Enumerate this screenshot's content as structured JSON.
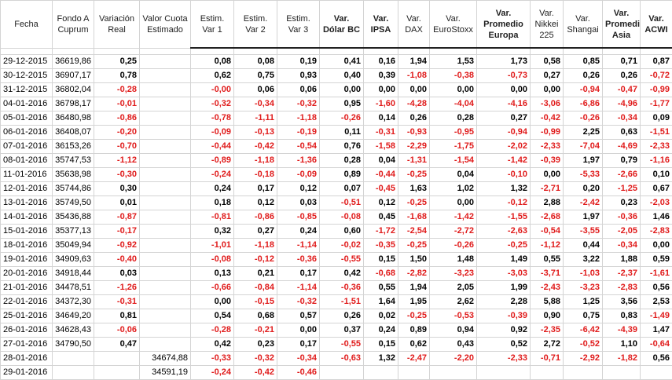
{
  "colors": {
    "negative": "#e01b1b",
    "positive": "#000000",
    "grid": "#d4d4d4"
  },
  "headers": [
    {
      "key": "fecha",
      "label": "Fecha"
    },
    {
      "key": "fondo",
      "label": "Fondo A Cuprum"
    },
    {
      "key": "variacion",
      "label": "Variación Real"
    },
    {
      "key": "valor_cuota",
      "label": "Valor Cuota Estimado"
    },
    {
      "key": "est1",
      "label": "Estim. Var 1"
    },
    {
      "key": "est2",
      "label": "Estim. Var 2"
    },
    {
      "key": "est3",
      "label": "Estim. Var 3"
    },
    {
      "key": "dolar",
      "label": "Var. Dólar BC"
    },
    {
      "key": "ipsa",
      "label": "Var. IPSA"
    },
    {
      "key": "dax",
      "label": "Var. DAX"
    },
    {
      "key": "eurostoxx",
      "label": "Var. EuroStoxx"
    },
    {
      "key": "europa",
      "label": "Var. Promedio Europa"
    },
    {
      "key": "nikkei",
      "label": "Var. Nikkei 225"
    },
    {
      "key": "shangai",
      "label": "Var. Shangai"
    },
    {
      "key": "asia",
      "label": "Var. Promedio Asia"
    },
    {
      "key": "acwi",
      "label": "Var. ACWI"
    }
  ],
  "rows": [
    [
      "29-12-2015",
      "36619,86",
      "0,25",
      "",
      "0,08",
      "0,08",
      "0,19",
      "0,41",
      "0,16",
      "1,94",
      "1,53",
      "1,73",
      "0,58",
      "0,85",
      "0,71",
      "0,87"
    ],
    [
      "30-12-2015",
      "36907,17",
      "0,78",
      "",
      "0,62",
      "0,75",
      "0,93",
      "0,40",
      "0,39",
      "-1,08",
      "-0,38",
      "-0,73",
      "0,27",
      "0,26",
      "0,26",
      "-0,72"
    ],
    [
      "31-12-2015",
      "36802,04",
      "-0,28",
      "",
      "-0,00",
      "0,06",
      "0,06",
      "0,00",
      "0,00",
      "0,00",
      "0,00",
      "0,00",
      "0,00",
      "-0,94",
      "-0,47",
      "-0,99"
    ],
    [
      "04-01-2016",
      "36798,17",
      "-0,01",
      "",
      "-0,32",
      "-0,34",
      "-0,32",
      "0,95",
      "-1,60",
      "-4,28",
      "-4,04",
      "-4,16",
      "-3,06",
      "-6,86",
      "-4,96",
      "-1,77"
    ],
    [
      "05-01-2016",
      "36480,98",
      "-0,86",
      "",
      "-0,78",
      "-1,11",
      "-1,18",
      "-0,26",
      "0,14",
      "0,26",
      "0,28",
      "0,27",
      "-0,42",
      "-0,26",
      "-0,34",
      "0,09"
    ],
    [
      "06-01-2016",
      "36408,07",
      "-0,20",
      "",
      "-0,09",
      "-0,13",
      "-0,19",
      "0,11",
      "-0,31",
      "-0,93",
      "-0,95",
      "-0,94",
      "-0,99",
      "2,25",
      "0,63",
      "-1,51"
    ],
    [
      "07-01-2016",
      "36153,26",
      "-0,70",
      "",
      "-0,44",
      "-0,42",
      "-0,54",
      "0,76",
      "-1,58",
      "-2,29",
      "-1,75",
      "-2,02",
      "-2,33",
      "-7,04",
      "-4,69",
      "-2,33"
    ],
    [
      "08-01-2016",
      "35747,53",
      "-1,12",
      "",
      "-0,89",
      "-1,18",
      "-1,36",
      "0,28",
      "0,04",
      "-1,31",
      "-1,54",
      "-1,42",
      "-0,39",
      "1,97",
      "0,79",
      "-1,16"
    ],
    [
      "11-01-2016",
      "35638,98",
      "-0,30",
      "",
      "-0,24",
      "-0,18",
      "-0,09",
      "0,89",
      "-0,44",
      "-0,25",
      "0,04",
      "-0,10",
      "0,00",
      "-5,33",
      "-2,66",
      "0,10"
    ],
    [
      "12-01-2016",
      "35744,86",
      "0,30",
      "",
      "0,24",
      "0,17",
      "0,12",
      "0,07",
      "-0,45",
      "1,63",
      "1,02",
      "1,32",
      "-2,71",
      "0,20",
      "-1,25",
      "0,67"
    ],
    [
      "13-01-2016",
      "35749,50",
      "0,01",
      "",
      "0,18",
      "0,12",
      "0,03",
      "-0,51",
      "0,12",
      "-0,25",
      "0,00",
      "-0,12",
      "2,88",
      "-2,42",
      "0,23",
      "-2,03"
    ],
    [
      "14-01-2016",
      "35436,88",
      "-0,87",
      "",
      "-0,81",
      "-0,86",
      "-0,85",
      "-0,08",
      "0,45",
      "-1,68",
      "-1,42",
      "-1,55",
      "-2,68",
      "1,97",
      "-0,36",
      "1,46"
    ],
    [
      "15-01-2016",
      "35377,13",
      "-0,17",
      "",
      "0,32",
      "0,27",
      "0,24",
      "0,60",
      "-1,72",
      "-2,54",
      "-2,72",
      "-2,63",
      "-0,54",
      "-3,55",
      "-2,05",
      "-2,83"
    ],
    [
      "18-01-2016",
      "35049,94",
      "-0,92",
      "",
      "-1,01",
      "-1,18",
      "-1,14",
      "-0,02",
      "-0,35",
      "-0,25",
      "-0,26",
      "-0,25",
      "-1,12",
      "0,44",
      "-0,34",
      "0,00"
    ],
    [
      "19-01-2016",
      "34909,63",
      "-0,40",
      "",
      "-0,08",
      "-0,12",
      "-0,36",
      "-0,55",
      "0,15",
      "1,50",
      "1,48",
      "1,49",
      "0,55",
      "3,22",
      "1,88",
      "0,59"
    ],
    [
      "20-01-2016",
      "34918,44",
      "0,03",
      "",
      "0,13",
      "0,21",
      "0,17",
      "0,42",
      "-0,68",
      "-2,82",
      "-3,23",
      "-3,03",
      "-3,71",
      "-1,03",
      "-2,37",
      "-1,61"
    ],
    [
      "21-01-2016",
      "34478,51",
      "-1,26",
      "",
      "-0,66",
      "-0,84",
      "-1,14",
      "-0,36",
      "0,55",
      "1,94",
      "2,05",
      "1,99",
      "-2,43",
      "-3,23",
      "-2,83",
      "0,56"
    ],
    [
      "22-01-2016",
      "34372,30",
      "-0,31",
      "",
      "0,00",
      "-0,15",
      "-0,32",
      "-1,51",
      "1,64",
      "1,95",
      "2,62",
      "2,28",
      "5,88",
      "1,25",
      "3,56",
      "2,53"
    ],
    [
      "25-01-2016",
      "34649,20",
      "0,81",
      "",
      "0,54",
      "0,68",
      "0,57",
      "0,26",
      "0,02",
      "-0,25",
      "-0,53",
      "-0,39",
      "0,90",
      "0,75",
      "0,83",
      "-1,49"
    ],
    [
      "26-01-2016",
      "34628,43",
      "-0,06",
      "",
      "-0,28",
      "-0,21",
      "0,00",
      "0,37",
      "0,24",
      "0,89",
      "0,94",
      "0,92",
      "-2,35",
      "-6,42",
      "-4,39",
      "1,47"
    ],
    [
      "27-01-2016",
      "34790,50",
      "0,47",
      "",
      "0,42",
      "0,23",
      "0,17",
      "-0,55",
      "0,15",
      "0,62",
      "0,43",
      "0,52",
      "2,72",
      "-0,52",
      "1,10",
      "-0,64"
    ],
    [
      "28-01-2016",
      "",
      "",
      "34674,88",
      "-0,33",
      "-0,32",
      "-0,34",
      "-0,63",
      "1,32",
      "-2,47",
      "-2,20",
      "-2,33",
      "-0,71",
      "-2,92",
      "-1,82",
      "0,56"
    ],
    [
      "29-01-2016",
      "",
      "",
      "34591,19",
      "-0,24",
      "-0,42",
      "-0,46",
      "",
      "",
      "",
      "",
      "",
      "",
      "",
      "",
      ""
    ]
  ]
}
